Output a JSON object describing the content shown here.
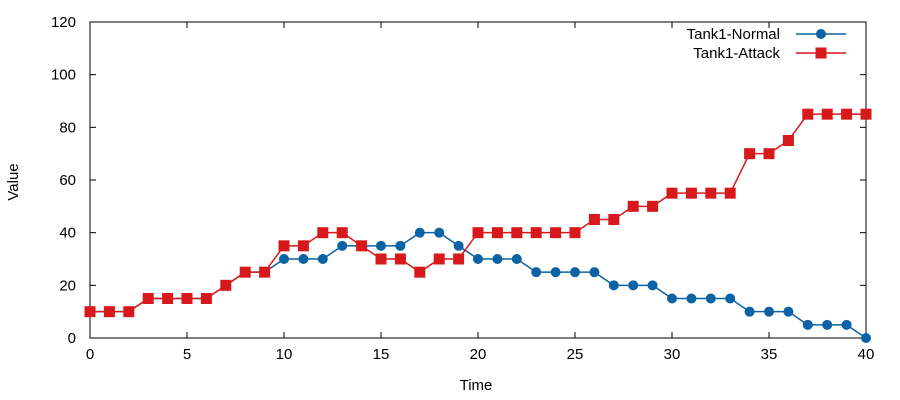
{
  "chart_data": {
    "type": "line",
    "title": "",
    "xlabel": "Time",
    "ylabel": "Value",
    "xlim": [
      0,
      40
    ],
    "ylim": [
      0,
      120
    ],
    "xticks": [
      0,
      5,
      10,
      15,
      20,
      25,
      30,
      35,
      40
    ],
    "yticks": [
      0,
      20,
      40,
      60,
      80,
      100,
      120
    ],
    "grid": false,
    "legend_position": "top-right",
    "x": [
      0,
      1,
      2,
      3,
      4,
      5,
      6,
      7,
      8,
      9,
      10,
      11,
      12,
      13,
      14,
      15,
      16,
      17,
      18,
      19,
      20,
      21,
      22,
      23,
      24,
      25,
      26,
      27,
      28,
      29,
      30,
      31,
      32,
      33,
      34,
      35,
      36,
      37,
      38,
      39,
      40
    ],
    "series": [
      {
        "name": "Tank1-Normal",
        "color": "#0b62a4",
        "marker": "circle",
        "values": [
          10,
          10,
          10,
          15,
          15,
          15,
          15,
          20,
          25,
          25,
          30,
          30,
          30,
          35,
          35,
          35,
          35,
          40,
          40,
          35,
          30,
          30,
          30,
          25,
          25,
          25,
          25,
          20,
          20,
          20,
          15,
          15,
          15,
          15,
          10,
          10,
          10,
          5,
          5,
          5,
          0
        ]
      },
      {
        "name": "Tank1-Attack",
        "color": "#d7191c",
        "marker": "square",
        "values": [
          10,
          10,
          10,
          15,
          15,
          15,
          15,
          20,
          25,
          25,
          35,
          35,
          40,
          40,
          35,
          30,
          30,
          25,
          30,
          30,
          40,
          40,
          40,
          40,
          40,
          40,
          45,
          45,
          50,
          50,
          55,
          55,
          55,
          55,
          70,
          70,
          75,
          85,
          85,
          85,
          85
        ]
      }
    ]
  }
}
